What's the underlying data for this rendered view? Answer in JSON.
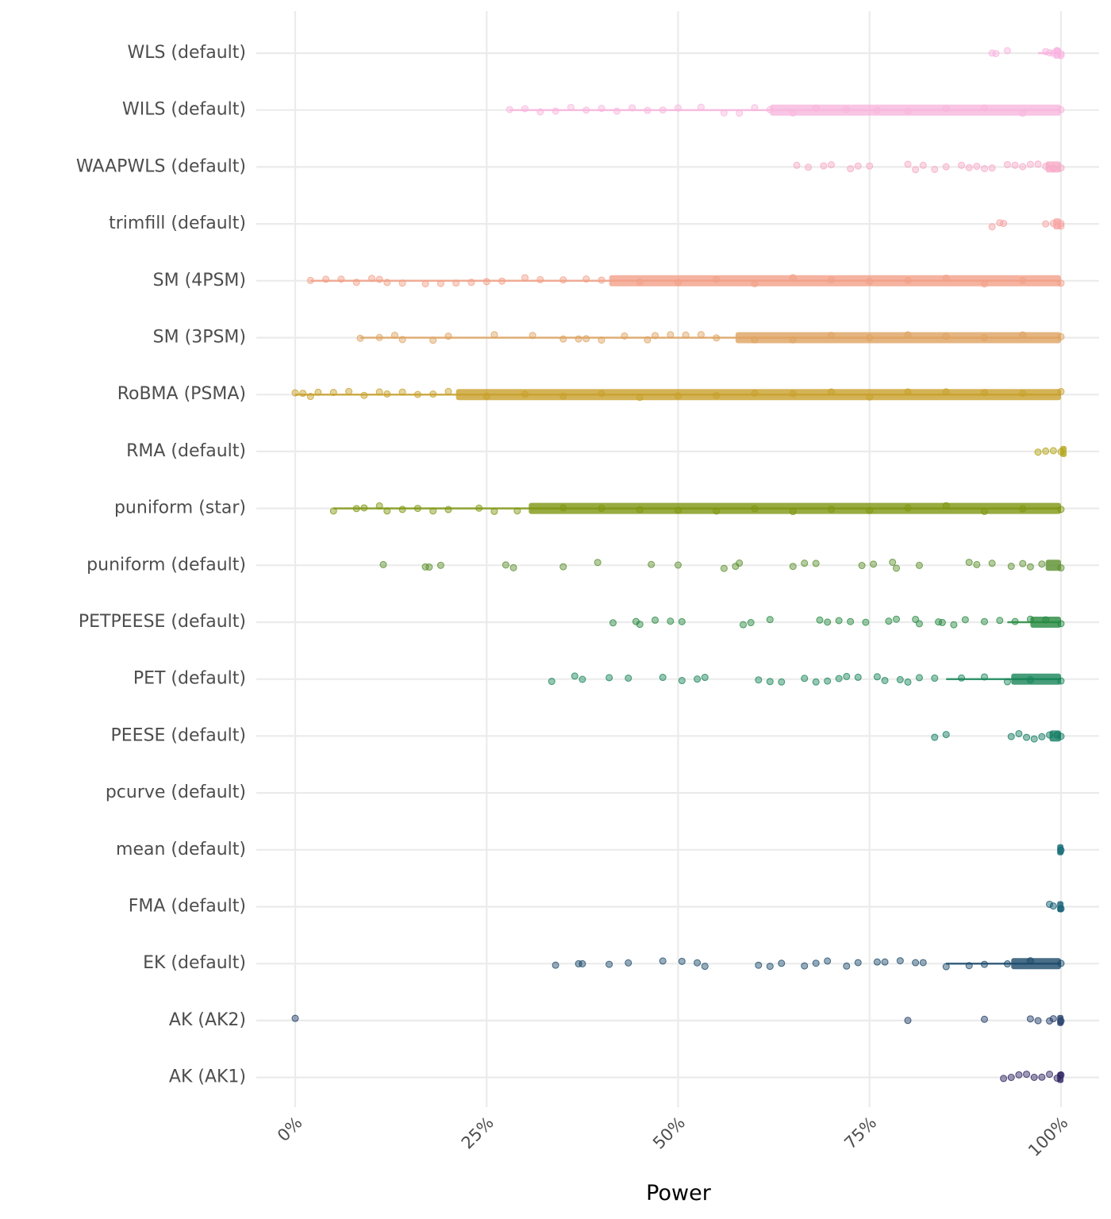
{
  "chart_data": {
    "type": "scatter",
    "subtype": "jittered strip plot with interval bars",
    "title": "",
    "xlabel": "Power",
    "ylabel": "",
    "xlim": [
      0,
      1
    ],
    "x_ticks": [
      0,
      0.25,
      0.5,
      0.75,
      1.0
    ],
    "x_tick_labels": [
      "0%",
      "25%",
      "50%",
      "75%",
      "100%"
    ],
    "grid": true,
    "legend": "none",
    "categories": [
      "WLS (default)",
      "WILS (default)",
      "WAAPWLS (default)",
      "trimfill (default)",
      "SM (4PSM)",
      "SM (3PSM)",
      "RoBMA (PSMA)",
      "RMA (default)",
      "puniform (star)",
      "puniform (default)",
      "PETPEESE (default)",
      "PET (default)",
      "PEESE (default)",
      "pcurve (default)",
      "mean (default)",
      "FMA (default)",
      "EK (default)",
      "AK (AK2)",
      "AK (AK1)"
    ],
    "series": [
      {
        "name": "WLS (default)",
        "color": "#F9B3E0",
        "line_min": 0.97,
        "box_min": 0.99,
        "max": 1.0,
        "points": [
          0.91,
          0.915,
          0.93,
          0.98,
          0.985,
          0.99,
          0.995,
          1.0,
          1.0
        ]
      },
      {
        "name": "WILS (default)",
        "color": "#F8B6DD",
        "line_min": 0.28,
        "box_min": 0.62,
        "max": 1.0,
        "points": [
          0.28,
          0.3,
          0.32,
          0.34,
          0.36,
          0.38,
          0.4,
          0.42,
          0.44,
          0.46,
          0.48,
          0.5,
          0.53,
          0.56,
          0.58,
          0.6,
          0.62,
          0.65,
          0.68,
          0.72,
          0.76,
          0.8,
          0.85,
          0.9,
          0.95,
          1.0
        ]
      },
      {
        "name": "WAAPWLS (default)",
        "color": "#F7A8C6",
        "line_min": null,
        "box_min": 0.98,
        "max": 1.0,
        "points": [
          0.655,
          0.67,
          0.69,
          0.7,
          0.725,
          0.735,
          0.75,
          0.8,
          0.81,
          0.82,
          0.835,
          0.85,
          0.87,
          0.88,
          0.89,
          0.9,
          0.91,
          0.93,
          0.94,
          0.95,
          0.96,
          0.97,
          0.98,
          0.99,
          1.0
        ]
      },
      {
        "name": "trimfill (default)",
        "color": "#F7A1A1",
        "line_min": null,
        "box_min": 0.99,
        "max": 1.0,
        "points": [
          0.91,
          0.92,
          0.925,
          0.98,
          0.99,
          1.0,
          1.0
        ]
      },
      {
        "name": "SM (4PSM)",
        "color": "#F2A088",
        "line_min": 0.02,
        "box_min": 0.41,
        "max": 1.0,
        "points": [
          0.02,
          0.04,
          0.06,
          0.08,
          0.1,
          0.11,
          0.12,
          0.14,
          0.17,
          0.19,
          0.21,
          0.23,
          0.25,
          0.27,
          0.3,
          0.32,
          0.35,
          0.38,
          0.4,
          0.45,
          0.5,
          0.55,
          0.6,
          0.65,
          0.7,
          0.75,
          0.8,
          0.85,
          0.9,
          0.95,
          1.0
        ]
      },
      {
        "name": "SM (3PSM)",
        "color": "#DEA362",
        "line_min": 0.085,
        "box_min": 0.575,
        "max": 1.0,
        "points": [
          0.085,
          0.11,
          0.13,
          0.14,
          0.18,
          0.2,
          0.26,
          0.31,
          0.35,
          0.37,
          0.38,
          0.4,
          0.43,
          0.46,
          0.47,
          0.49,
          0.51,
          0.53,
          0.55,
          0.6,
          0.65,
          0.7,
          0.75,
          0.8,
          0.85,
          0.9,
          0.95,
          1.0
        ]
      },
      {
        "name": "RoBMA (PSMA)",
        "color": "#C8A02C",
        "line_min": 0.0,
        "box_min": 0.21,
        "max": 1.0,
        "points": [
          0.0,
          0.01,
          0.02,
          0.03,
          0.05,
          0.07,
          0.09,
          0.11,
          0.12,
          0.14,
          0.16,
          0.18,
          0.2,
          0.25,
          0.3,
          0.35,
          0.4,
          0.45,
          0.5,
          0.55,
          0.6,
          0.65,
          0.7,
          0.75,
          0.8,
          0.85,
          0.9,
          0.95,
          1.0
        ]
      },
      {
        "name": "RMA (default)",
        "color": "#B2A314",
        "line_min": null,
        "box_min": 0.999,
        "max": 1.0,
        "points": [
          0.97,
          0.98,
          0.99,
          1.0
        ]
      },
      {
        "name": "puniform (star)",
        "color": "#7E9612",
        "line_min": 0.05,
        "box_min": 0.305,
        "max": 1.0,
        "points": [
          0.05,
          0.08,
          0.09,
          0.11,
          0.12,
          0.14,
          0.16,
          0.18,
          0.2,
          0.24,
          0.26,
          0.29,
          0.35,
          0.4,
          0.45,
          0.5,
          0.55,
          0.6,
          0.65,
          0.7,
          0.75,
          0.8,
          0.85,
          0.9,
          0.95,
          1.0
        ]
      },
      {
        "name": "puniform (default)",
        "color": "#5A8F2C",
        "line_min": null,
        "box_min": 0.98,
        "max": 1.0,
        "points": [
          0.115,
          0.17,
          0.175,
          0.19,
          0.275,
          0.285,
          0.35,
          0.395,
          0.465,
          0.5,
          0.56,
          0.575,
          0.58,
          0.65,
          0.665,
          0.68,
          0.74,
          0.755,
          0.78,
          0.785,
          0.815,
          0.88,
          0.89,
          0.91,
          0.935,
          0.95,
          0.96,
          0.975,
          1.0
        ]
      },
      {
        "name": "PETPEESE (default)",
        "color": "#268A40",
        "line_min": 0.93,
        "box_min": 0.96,
        "max": 1.0,
        "points": [
          0.415,
          0.445,
          0.45,
          0.47,
          0.49,
          0.505,
          0.585,
          0.595,
          0.62,
          0.685,
          0.695,
          0.71,
          0.725,
          0.745,
          0.775,
          0.785,
          0.81,
          0.815,
          0.84,
          0.845,
          0.86,
          0.875,
          0.9,
          0.92,
          0.94,
          0.96,
          0.98,
          1.0
        ]
      },
      {
        "name": "PET (default)",
        "color": "#168558",
        "line_min": 0.85,
        "box_min": 0.935,
        "max": 1.0,
        "points": [
          0.335,
          0.365,
          0.375,
          0.41,
          0.435,
          0.48,
          0.505,
          0.525,
          0.535,
          0.605,
          0.62,
          0.635,
          0.665,
          0.68,
          0.695,
          0.71,
          0.72,
          0.735,
          0.76,
          0.77,
          0.79,
          0.8,
          0.815,
          0.835,
          0.87,
          0.9,
          0.93,
          0.96,
          1.0
        ]
      },
      {
        "name": "PEESE (default)",
        "color": "#0F7A60",
        "line_min": null,
        "box_min": 0.985,
        "max": 1.0,
        "points": [
          0.835,
          0.85,
          0.935,
          0.945,
          0.955,
          0.965,
          0.975,
          0.985,
          0.995,
          1.0
        ]
      },
      {
        "name": "pcurve (default)",
        "color": "#0B6F6A",
        "line_min": null,
        "box_min": null,
        "max": null,
        "points": []
      },
      {
        "name": "mean (default)",
        "color": "#0A6570",
        "line_min": null,
        "box_min": 0.995,
        "max": 1.0,
        "points": [
          1.0
        ]
      },
      {
        "name": "FMA (default)",
        "color": "#0D5A70",
        "line_min": null,
        "box_min": 0.995,
        "max": 1.0,
        "points": [
          0.985,
          0.99,
          1.0
        ]
      },
      {
        "name": "EK (default)",
        "color": "#1A4A6A",
        "line_min": 0.85,
        "box_min": 0.935,
        "max": 1.0,
        "points": [
          0.34,
          0.37,
          0.375,
          0.41,
          0.435,
          0.48,
          0.505,
          0.525,
          0.535,
          0.605,
          0.62,
          0.635,
          0.665,
          0.68,
          0.695,
          0.72,
          0.735,
          0.76,
          0.77,
          0.79,
          0.81,
          0.82,
          0.85,
          0.88,
          0.9,
          0.93,
          0.96,
          1.0
        ]
      },
      {
        "name": "AK (AK2)",
        "color": "#1E3A66",
        "line_min": null,
        "box_min": 0.995,
        "max": 1.0,
        "points": [
          0.0,
          0.8,
          0.9,
          0.96,
          0.97,
          0.985,
          0.99,
          1.0
        ]
      },
      {
        "name": "AK (AK1)",
        "color": "#2A1F5E",
        "line_min": null,
        "box_min": 0.995,
        "max": 1.0,
        "points": [
          0.925,
          0.935,
          0.945,
          0.955,
          0.965,
          0.975,
          0.985,
          0.995,
          1.0
        ]
      }
    ]
  }
}
